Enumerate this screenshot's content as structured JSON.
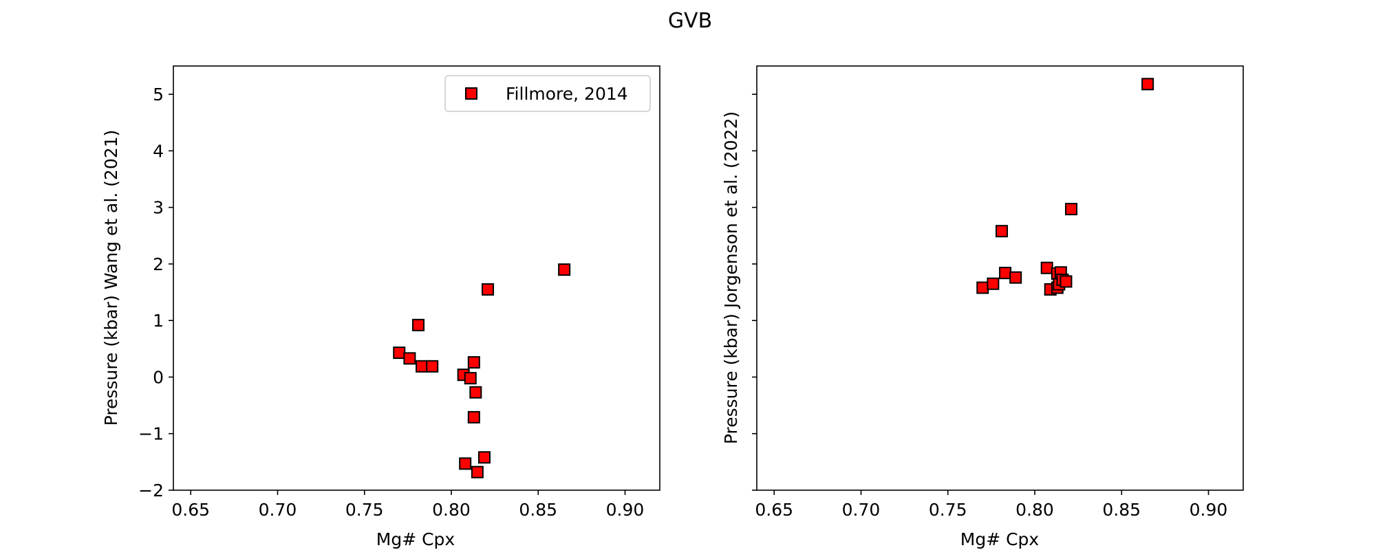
{
  "figure": {
    "suptitle": "GVB"
  },
  "chart_data": [
    {
      "type": "scatter",
      "xlabel": "Mg# Cpx",
      "ylabel": "Pressure (kbar) Wang et al. (2021)",
      "xlim": [
        0.64,
        0.92
      ],
      "ylim": [
        -2.0,
        5.5
      ],
      "x_ticks": [
        0.65,
        0.7,
        0.75,
        0.8,
        0.85,
        0.9
      ],
      "x_tick_labels": [
        "0.65",
        "0.70",
        "0.75",
        "0.80",
        "0.85",
        "0.90"
      ],
      "y_ticks": [
        -2,
        -1,
        0,
        1,
        2,
        3,
        4,
        5
      ],
      "y_tick_labels": [
        "−2",
        "−1",
        "0",
        "1",
        "2",
        "3",
        "4",
        "5"
      ],
      "grid": false,
      "legend": {
        "position": "top-right",
        "entries": [
          "Fillmore, 2014"
        ]
      },
      "marker": {
        "shape": "square",
        "fill": "#ff0000",
        "edge": "#000000"
      },
      "series": [
        {
          "name": "Fillmore, 2014",
          "points": [
            {
              "x": 0.77,
              "y": 0.43
            },
            {
              "x": 0.776,
              "y": 0.33
            },
            {
              "x": 0.781,
              "y": 0.92
            },
            {
              "x": 0.783,
              "y": 0.19
            },
            {
              "x": 0.789,
              "y": 0.19
            },
            {
              "x": 0.807,
              "y": 0.04
            },
            {
              "x": 0.808,
              "y": -1.53
            },
            {
              "x": 0.811,
              "y": -0.02
            },
            {
              "x": 0.813,
              "y": 0.26
            },
            {
              "x": 0.813,
              "y": -0.71
            },
            {
              "x": 0.814,
              "y": -0.27
            },
            {
              "x": 0.815,
              "y": -1.68
            },
            {
              "x": 0.819,
              "y": -1.42
            },
            {
              "x": 0.821,
              "y": 1.55
            },
            {
              "x": 0.865,
              "y": 1.9
            }
          ]
        }
      ]
    },
    {
      "type": "scatter",
      "xlabel": "Mg# Cpx",
      "ylabel": "Pressure (kbar) Jorgenson et al. (2022)",
      "xlim": [
        0.64,
        0.92
      ],
      "ylim": [
        -2.0,
        5.5
      ],
      "x_ticks": [
        0.65,
        0.7,
        0.75,
        0.8,
        0.85,
        0.9
      ],
      "x_tick_labels": [
        "0.65",
        "0.70",
        "0.75",
        "0.80",
        "0.85",
        "0.90"
      ],
      "y_ticks": [
        -2,
        -1,
        0,
        1,
        2,
        3,
        4,
        5
      ],
      "y_tick_labels": [],
      "grid": false,
      "marker": {
        "shape": "square",
        "fill": "#ff0000",
        "edge": "#000000"
      },
      "series": [
        {
          "name": "Fillmore, 2014",
          "points": [
            {
              "x": 0.77,
              "y": 1.58
            },
            {
              "x": 0.776,
              "y": 1.65
            },
            {
              "x": 0.781,
              "y": 2.58
            },
            {
              "x": 0.783,
              "y": 1.84
            },
            {
              "x": 0.789,
              "y": 1.76
            },
            {
              "x": 0.807,
              "y": 1.93
            },
            {
              "x": 0.809,
              "y": 1.55
            },
            {
              "x": 0.813,
              "y": 1.83
            },
            {
              "x": 0.813,
              "y": 1.58
            },
            {
              "x": 0.814,
              "y": 1.64
            },
            {
              "x": 0.815,
              "y": 1.85
            },
            {
              "x": 0.816,
              "y": 1.72
            },
            {
              "x": 0.818,
              "y": 1.69
            },
            {
              "x": 0.821,
              "y": 2.97
            },
            {
              "x": 0.865,
              "y": 5.18
            }
          ]
        }
      ]
    }
  ]
}
